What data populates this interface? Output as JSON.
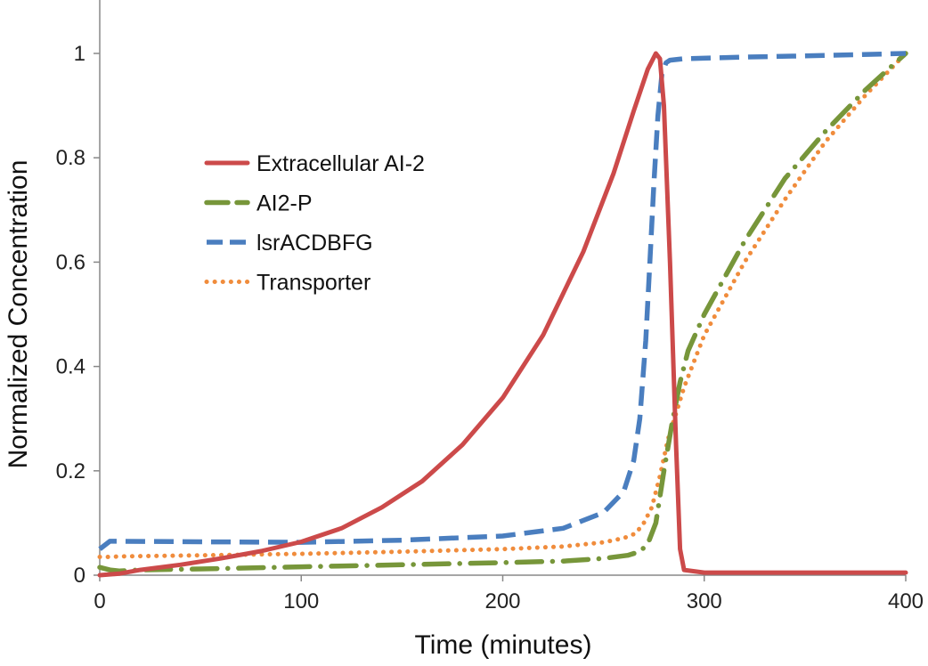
{
  "chart_data": {
    "type": "line",
    "title": "",
    "xlabel": "Time (minutes)",
    "ylabel": "Normalized Concentration",
    "xlim": [
      0,
      400
    ],
    "ylim": [
      0,
      1.0
    ],
    "x_ticks": [
      0,
      100,
      200,
      300,
      400
    ],
    "x_tick_labels": [
      "0",
      "100",
      "200",
      "300",
      "400"
    ],
    "y_ticks": [
      0,
      0.2,
      0.4,
      0.6,
      0.8,
      1.0
    ],
    "y_tick_labels": [
      "0",
      "0.2",
      "0.4",
      "0.6",
      "0.8",
      "1"
    ],
    "grid": false,
    "legend_position": "center-left",
    "series": [
      {
        "name": "Extracellular AI-2",
        "color": "#cc4a4a",
        "style": "solid",
        "x": [
          0,
          10,
          20,
          40,
          60,
          80,
          100,
          120,
          140,
          160,
          180,
          200,
          220,
          240,
          255,
          265,
          272,
          276,
          278,
          280,
          283,
          286,
          288,
          290,
          300,
          350,
          400
        ],
        "y": [
          0.0,
          0.003,
          0.01,
          0.02,
          0.032,
          0.046,
          0.064,
          0.09,
          0.13,
          0.18,
          0.25,
          0.34,
          0.46,
          0.62,
          0.77,
          0.89,
          0.97,
          1.0,
          0.99,
          0.9,
          0.6,
          0.25,
          0.05,
          0.01,
          0.005,
          0.005,
          0.005
        ]
      },
      {
        "name": "AI2-P",
        "color": "#77963a",
        "style": "dashdot",
        "x": [
          0,
          5,
          10,
          20,
          50,
          100,
          150,
          200,
          230,
          250,
          262,
          268,
          272,
          276,
          280,
          284,
          288,
          292,
          300,
          320,
          340,
          360,
          380,
          400
        ],
        "y": [
          0.015,
          0.01,
          0.008,
          0.01,
          0.012,
          0.016,
          0.02,
          0.024,
          0.027,
          0.032,
          0.038,
          0.045,
          0.06,
          0.1,
          0.2,
          0.29,
          0.37,
          0.43,
          0.5,
          0.64,
          0.76,
          0.85,
          0.93,
          1.0
        ]
      },
      {
        "name": "lsrACDBFG",
        "color": "#4a7ebf",
        "style": "dashed",
        "x": [
          0,
          5,
          10,
          50,
          100,
          150,
          200,
          230,
          250,
          260,
          265,
          268,
          271,
          273,
          275,
          277,
          279,
          281,
          283,
          290,
          320,
          360,
          400
        ],
        "y": [
          0.05,
          0.065,
          0.065,
          0.064,
          0.063,
          0.067,
          0.075,
          0.09,
          0.12,
          0.16,
          0.22,
          0.3,
          0.45,
          0.6,
          0.75,
          0.88,
          0.96,
          0.982,
          0.987,
          0.99,
          0.993,
          0.996,
          1.0
        ]
      },
      {
        "name": "Transporter",
        "color": "#f08c3c",
        "style": "dotted",
        "x": [
          0,
          5,
          10,
          50,
          100,
          150,
          200,
          230,
          250,
          260,
          266,
          270,
          274,
          278,
          282,
          286,
          290,
          295,
          300,
          320,
          340,
          360,
          380,
          400
        ],
        "y": [
          0.035,
          0.035,
          0.036,
          0.038,
          0.041,
          0.045,
          0.05,
          0.055,
          0.063,
          0.071,
          0.08,
          0.1,
          0.13,
          0.19,
          0.26,
          0.31,
          0.36,
          0.41,
          0.46,
          0.6,
          0.72,
          0.83,
          0.92,
          1.0
        ]
      }
    ]
  }
}
